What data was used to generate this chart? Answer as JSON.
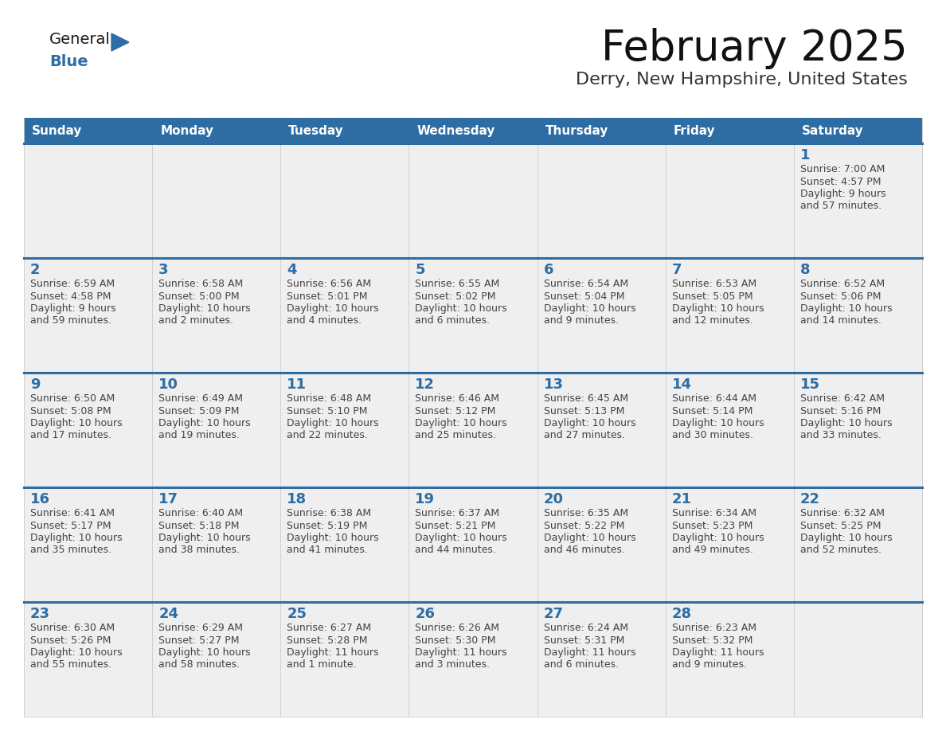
{
  "title": "February 2025",
  "subtitle": "Derry, New Hampshire, United States",
  "header_bg_color": "#2E6DA4",
  "header_text_color": "#FFFFFF",
  "header_days": [
    "Sunday",
    "Monday",
    "Tuesday",
    "Wednesday",
    "Thursday",
    "Friday",
    "Saturday"
  ],
  "cell_bg_color": "#EFEFEF",
  "cell_border_color": "#CCCCCC",
  "day_number_color": "#2E6DA4",
  "info_text_color": "#444444",
  "top_border_color": "#2E6DA4",
  "logo_general_color": "#1a1a1a",
  "logo_blue_color": "#2E6DA4",
  "background_color": "#FFFFFF",
  "calendar_data": [
    [
      null,
      null,
      null,
      null,
      null,
      null,
      {
        "day": 1,
        "sunrise": "7:00 AM",
        "sunset": "4:57 PM",
        "daylight_line1": "Daylight: 9 hours",
        "daylight_line2": "and 57 minutes."
      }
    ],
    [
      {
        "day": 2,
        "sunrise": "6:59 AM",
        "sunset": "4:58 PM",
        "daylight_line1": "Daylight: 9 hours",
        "daylight_line2": "and 59 minutes."
      },
      {
        "day": 3,
        "sunrise": "6:58 AM",
        "sunset": "5:00 PM",
        "daylight_line1": "Daylight: 10 hours",
        "daylight_line2": "and 2 minutes."
      },
      {
        "day": 4,
        "sunrise": "6:56 AM",
        "sunset": "5:01 PM",
        "daylight_line1": "Daylight: 10 hours",
        "daylight_line2": "and 4 minutes."
      },
      {
        "day": 5,
        "sunrise": "6:55 AM",
        "sunset": "5:02 PM",
        "daylight_line1": "Daylight: 10 hours",
        "daylight_line2": "and 6 minutes."
      },
      {
        "day": 6,
        "sunrise": "6:54 AM",
        "sunset": "5:04 PM",
        "daylight_line1": "Daylight: 10 hours",
        "daylight_line2": "and 9 minutes."
      },
      {
        "day": 7,
        "sunrise": "6:53 AM",
        "sunset": "5:05 PM",
        "daylight_line1": "Daylight: 10 hours",
        "daylight_line2": "and 12 minutes."
      },
      {
        "day": 8,
        "sunrise": "6:52 AM",
        "sunset": "5:06 PM",
        "daylight_line1": "Daylight: 10 hours",
        "daylight_line2": "and 14 minutes."
      }
    ],
    [
      {
        "day": 9,
        "sunrise": "6:50 AM",
        "sunset": "5:08 PM",
        "daylight_line1": "Daylight: 10 hours",
        "daylight_line2": "and 17 minutes."
      },
      {
        "day": 10,
        "sunrise": "6:49 AM",
        "sunset": "5:09 PM",
        "daylight_line1": "Daylight: 10 hours",
        "daylight_line2": "and 19 minutes."
      },
      {
        "day": 11,
        "sunrise": "6:48 AM",
        "sunset": "5:10 PM",
        "daylight_line1": "Daylight: 10 hours",
        "daylight_line2": "and 22 minutes."
      },
      {
        "day": 12,
        "sunrise": "6:46 AM",
        "sunset": "5:12 PM",
        "daylight_line1": "Daylight: 10 hours",
        "daylight_line2": "and 25 minutes."
      },
      {
        "day": 13,
        "sunrise": "6:45 AM",
        "sunset": "5:13 PM",
        "daylight_line1": "Daylight: 10 hours",
        "daylight_line2": "and 27 minutes."
      },
      {
        "day": 14,
        "sunrise": "6:44 AM",
        "sunset": "5:14 PM",
        "daylight_line1": "Daylight: 10 hours",
        "daylight_line2": "and 30 minutes."
      },
      {
        "day": 15,
        "sunrise": "6:42 AM",
        "sunset": "5:16 PM",
        "daylight_line1": "Daylight: 10 hours",
        "daylight_line2": "and 33 minutes."
      }
    ],
    [
      {
        "day": 16,
        "sunrise": "6:41 AM",
        "sunset": "5:17 PM",
        "daylight_line1": "Daylight: 10 hours",
        "daylight_line2": "and 35 minutes."
      },
      {
        "day": 17,
        "sunrise": "6:40 AM",
        "sunset": "5:18 PM",
        "daylight_line1": "Daylight: 10 hours",
        "daylight_line2": "and 38 minutes."
      },
      {
        "day": 18,
        "sunrise": "6:38 AM",
        "sunset": "5:19 PM",
        "daylight_line1": "Daylight: 10 hours",
        "daylight_line2": "and 41 minutes."
      },
      {
        "day": 19,
        "sunrise": "6:37 AM",
        "sunset": "5:21 PM",
        "daylight_line1": "Daylight: 10 hours",
        "daylight_line2": "and 44 minutes."
      },
      {
        "day": 20,
        "sunrise": "6:35 AM",
        "sunset": "5:22 PM",
        "daylight_line1": "Daylight: 10 hours",
        "daylight_line2": "and 46 minutes."
      },
      {
        "day": 21,
        "sunrise": "6:34 AM",
        "sunset": "5:23 PM",
        "daylight_line1": "Daylight: 10 hours",
        "daylight_line2": "and 49 minutes."
      },
      {
        "day": 22,
        "sunrise": "6:32 AM",
        "sunset": "5:25 PM",
        "daylight_line1": "Daylight: 10 hours",
        "daylight_line2": "and 52 minutes."
      }
    ],
    [
      {
        "day": 23,
        "sunrise": "6:30 AM",
        "sunset": "5:26 PM",
        "daylight_line1": "Daylight: 10 hours",
        "daylight_line2": "and 55 minutes."
      },
      {
        "day": 24,
        "sunrise": "6:29 AM",
        "sunset": "5:27 PM",
        "daylight_line1": "Daylight: 10 hours",
        "daylight_line2": "and 58 minutes."
      },
      {
        "day": 25,
        "sunrise": "6:27 AM",
        "sunset": "5:28 PM",
        "daylight_line1": "Daylight: 11 hours",
        "daylight_line2": "and 1 minute."
      },
      {
        "day": 26,
        "sunrise": "6:26 AM",
        "sunset": "5:30 PM",
        "daylight_line1": "Daylight: 11 hours",
        "daylight_line2": "and 3 minutes."
      },
      {
        "day": 27,
        "sunrise": "6:24 AM",
        "sunset": "5:31 PM",
        "daylight_line1": "Daylight: 11 hours",
        "daylight_line2": "and 6 minutes."
      },
      {
        "day": 28,
        "sunrise": "6:23 AM",
        "sunset": "5:32 PM",
        "daylight_line1": "Daylight: 11 hours",
        "daylight_line2": "and 9 minutes."
      },
      null
    ]
  ]
}
